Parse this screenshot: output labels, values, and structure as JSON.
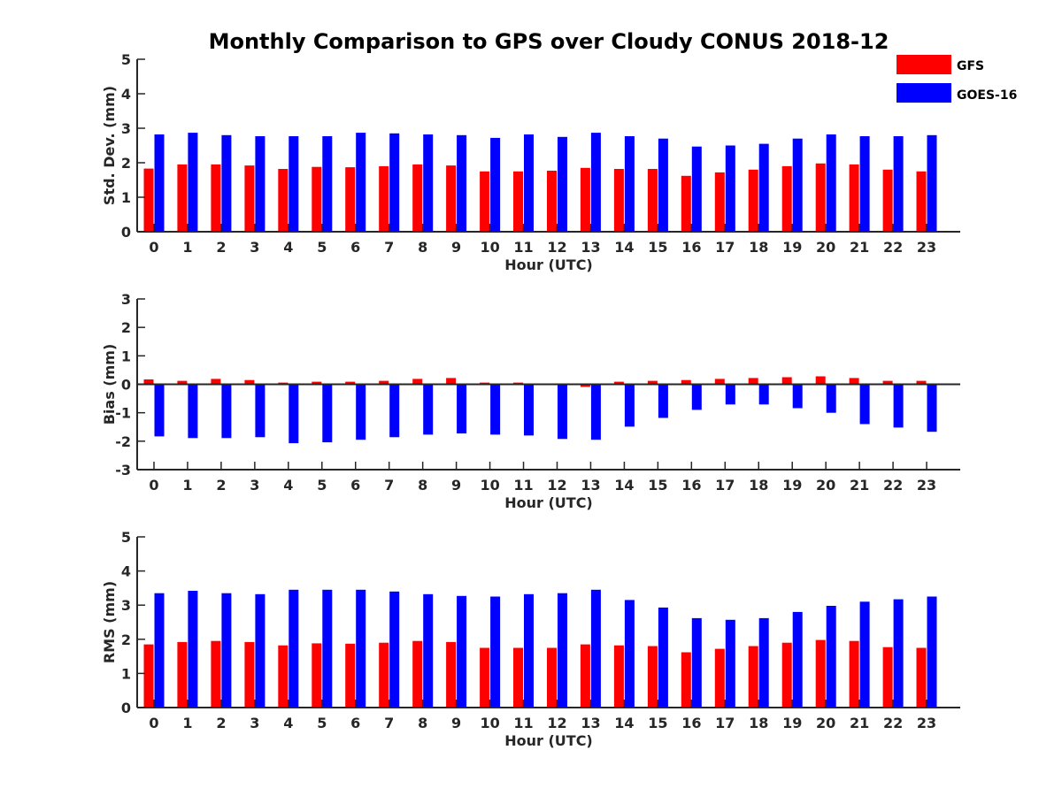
{
  "figure_title": "Monthly Comparison to GPS over Cloudy CONUS 2018-12",
  "legend": [
    {
      "label": "GFS",
      "color": "#ff0000"
    },
    {
      "label": "GOES-16",
      "color": "#0000ff"
    }
  ],
  "chart_data": [
    {
      "type": "bar",
      "xlabel": "Hour (UTC)",
      "ylabel": "Std. Dev. (mm)",
      "ylim": [
        0,
        5
      ],
      "yticks": [
        0,
        1,
        2,
        3,
        4,
        5
      ],
      "categories": [
        "0",
        "1",
        "2",
        "3",
        "4",
        "5",
        "6",
        "7",
        "8",
        "9",
        "10",
        "11",
        "12",
        "13",
        "14",
        "15",
        "16",
        "17",
        "18",
        "19",
        "20",
        "21",
        "22",
        "23"
      ],
      "series": [
        {
          "name": "GFS",
          "color": "#ff0000",
          "values": [
            1.83,
            1.95,
            1.95,
            1.92,
            1.82,
            1.88,
            1.87,
            1.9,
            1.95,
            1.92,
            1.75,
            1.75,
            1.77,
            1.85,
            1.82,
            1.82,
            1.62,
            1.72,
            1.8,
            1.9,
            1.98,
            1.95,
            1.8,
            1.75
          ]
        },
        {
          "name": "GOES-16",
          "color": "#0000ff",
          "values": [
            2.82,
            2.87,
            2.8,
            2.77,
            2.77,
            2.77,
            2.87,
            2.85,
            2.82,
            2.8,
            2.72,
            2.82,
            2.75,
            2.87,
            2.77,
            2.7,
            2.47,
            2.5,
            2.55,
            2.7,
            2.82,
            2.77,
            2.77,
            2.8
          ]
        }
      ]
    },
    {
      "type": "bar",
      "xlabel": "Hour (UTC)",
      "ylabel": "Bias (mm)",
      "ylim": [
        -3,
        3
      ],
      "yticks": [
        -3,
        -2,
        -1,
        0,
        1,
        2,
        3
      ],
      "categories": [
        "0",
        "1",
        "2",
        "3",
        "4",
        "5",
        "6",
        "7",
        "8",
        "9",
        "10",
        "11",
        "12",
        "13",
        "14",
        "15",
        "16",
        "17",
        "18",
        "19",
        "20",
        "21",
        "22",
        "23"
      ],
      "series": [
        {
          "name": "GFS",
          "color": "#ff0000",
          "values": [
            0.17,
            0.12,
            0.19,
            0.15,
            0.06,
            0.09,
            0.09,
            0.12,
            0.19,
            0.22,
            0.06,
            0.06,
            -0.03,
            -0.09,
            0.09,
            0.12,
            0.15,
            0.19,
            0.22,
            0.25,
            0.28,
            0.22,
            0.12,
            0.12
          ]
        },
        {
          "name": "GOES-16",
          "color": "#0000ff",
          "values": [
            -1.83,
            -1.89,
            -1.89,
            -1.86,
            -2.07,
            -2.04,
            -1.95,
            -1.86,
            -1.77,
            -1.73,
            -1.77,
            -1.8,
            -1.92,
            -1.95,
            -1.49,
            -1.18,
            -0.9,
            -0.71,
            -0.71,
            -0.84,
            -1.0,
            -1.4,
            -1.52,
            -1.67
          ]
        }
      ]
    },
    {
      "type": "bar",
      "xlabel": "Hour (UTC)",
      "ylabel": "RMS (mm)",
      "ylim": [
        0,
        5
      ],
      "yticks": [
        0,
        1,
        2,
        3,
        4,
        5
      ],
      "categories": [
        "0",
        "1",
        "2",
        "3",
        "4",
        "5",
        "6",
        "7",
        "8",
        "9",
        "10",
        "11",
        "12",
        "13",
        "14",
        "15",
        "16",
        "17",
        "18",
        "19",
        "20",
        "21",
        "22",
        "23"
      ],
      "series": [
        {
          "name": "GFS",
          "color": "#ff0000",
          "values": [
            1.85,
            1.92,
            1.95,
            1.92,
            1.82,
            1.88,
            1.87,
            1.9,
            1.95,
            1.92,
            1.75,
            1.75,
            1.75,
            1.85,
            1.82,
            1.8,
            1.62,
            1.72,
            1.8,
            1.9,
            1.98,
            1.95,
            1.77,
            1.75
          ]
        },
        {
          "name": "GOES-16",
          "color": "#0000ff",
          "values": [
            3.35,
            3.42,
            3.35,
            3.32,
            3.45,
            3.45,
            3.45,
            3.4,
            3.32,
            3.27,
            3.25,
            3.32,
            3.35,
            3.45,
            3.15,
            2.93,
            2.62,
            2.57,
            2.62,
            2.8,
            2.98,
            3.1,
            3.17,
            3.25
          ]
        }
      ]
    }
  ]
}
